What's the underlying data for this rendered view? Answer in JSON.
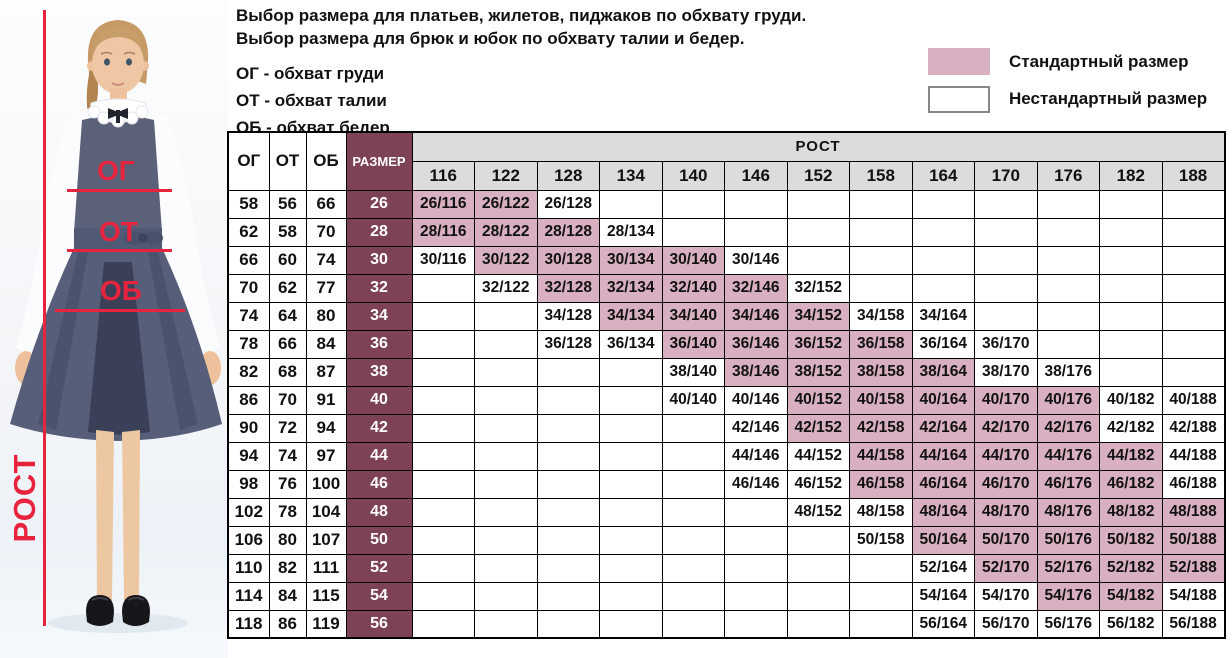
{
  "title": {
    "line1": "Выбор размера для платьев, жилетов, пиджаков по обхвату груди.",
    "line2": "Выбор размера для брюк и юбок по обхвату талии и бедер."
  },
  "abbreviations": [
    "ОГ - обхват груди",
    "ОТ - обхват талии",
    "ОБ - обхват бедер"
  ],
  "legend": {
    "standard": "Стандартный размер",
    "nonstandard": "Нестандартный размер"
  },
  "photo_overlay": {
    "chest_label": "ОГ",
    "waist_label": "ОТ",
    "hips_label": "ОБ",
    "height_label": "РОСТ"
  },
  "colors": {
    "standard_fill": "#d9b0c1",
    "size_column_fill": "#7d4255",
    "header_fill": "#dcdcdc",
    "accent_red": "#e8233e"
  },
  "chart_data": {
    "type": "table",
    "measure_headers": [
      "ОГ",
      "ОТ",
      "ОБ",
      "РАЗМЕР"
    ],
    "height_header": "РОСТ",
    "heights": [
      116,
      122,
      128,
      134,
      140,
      146,
      152,
      158,
      164,
      170,
      176,
      182,
      188
    ],
    "cell_text_format": "{size}/{height}",
    "legend_note": "standard = pink cells, nonstandard = white cells with text",
    "rows": [
      {
        "og": 58,
        "ot": 56,
        "ob": 66,
        "size": 26,
        "standard": [
          116,
          122
        ],
        "nonstandard": [
          128
        ]
      },
      {
        "og": 62,
        "ot": 58,
        "ob": 70,
        "size": 28,
        "standard": [
          116,
          122,
          128
        ],
        "nonstandard": [
          134
        ]
      },
      {
        "og": 66,
        "ot": 60,
        "ob": 74,
        "size": 30,
        "standard": [
          122,
          128,
          134,
          140
        ],
        "nonstandard": [
          116,
          146
        ]
      },
      {
        "og": 70,
        "ot": 62,
        "ob": 77,
        "size": 32,
        "standard": [
          128,
          134,
          140,
          146
        ],
        "nonstandard": [
          122,
          152
        ]
      },
      {
        "og": 74,
        "ot": 64,
        "ob": 80,
        "size": 34,
        "standard": [
          134,
          140,
          146,
          152
        ],
        "nonstandard": [
          128,
          158,
          164
        ]
      },
      {
        "og": 78,
        "ot": 66,
        "ob": 84,
        "size": 36,
        "standard": [
          140,
          146,
          152,
          158
        ],
        "nonstandard": [
          128,
          134,
          164,
          170
        ]
      },
      {
        "og": 82,
        "ot": 68,
        "ob": 87,
        "size": 38,
        "standard": [
          146,
          152,
          158,
          164
        ],
        "nonstandard": [
          140,
          170,
          176
        ]
      },
      {
        "og": 86,
        "ot": 70,
        "ob": 91,
        "size": 40,
        "standard": [
          152,
          158,
          164,
          170,
          176
        ],
        "nonstandard": [
          140,
          146,
          182,
          188
        ]
      },
      {
        "og": 90,
        "ot": 72,
        "ob": 94,
        "size": 42,
        "standard": [
          152,
          158,
          164,
          170,
          176
        ],
        "nonstandard": [
          146,
          182,
          188
        ]
      },
      {
        "og": 94,
        "ot": 74,
        "ob": 97,
        "size": 44,
        "standard": [
          158,
          164,
          170,
          176,
          182
        ],
        "nonstandard": [
          146,
          152,
          188
        ]
      },
      {
        "og": 98,
        "ot": 76,
        "ob": 100,
        "size": 46,
        "standard": [
          158,
          164,
          170,
          176,
          182
        ],
        "nonstandard": [
          146,
          152,
          188
        ]
      },
      {
        "og": 102,
        "ot": 78,
        "ob": 104,
        "size": 48,
        "standard": [
          164,
          170,
          176,
          182,
          188
        ],
        "nonstandard": [
          152,
          158
        ]
      },
      {
        "og": 106,
        "ot": 80,
        "ob": 107,
        "size": 50,
        "standard": [
          164,
          170,
          176,
          182,
          188
        ],
        "nonstandard": [
          158
        ]
      },
      {
        "og": 110,
        "ot": 82,
        "ob": 111,
        "size": 52,
        "standard": [
          170,
          176,
          182,
          188
        ],
        "nonstandard": [
          164
        ]
      },
      {
        "og": 114,
        "ot": 84,
        "ob": 115,
        "size": 54,
        "standard": [
          176,
          182
        ],
        "nonstandard": [
          164,
          170,
          188
        ]
      },
      {
        "og": 118,
        "ot": 86,
        "ob": 119,
        "size": 56,
        "standard": [],
        "nonstandard": [
          164,
          170,
          176,
          182,
          188
        ]
      }
    ]
  }
}
